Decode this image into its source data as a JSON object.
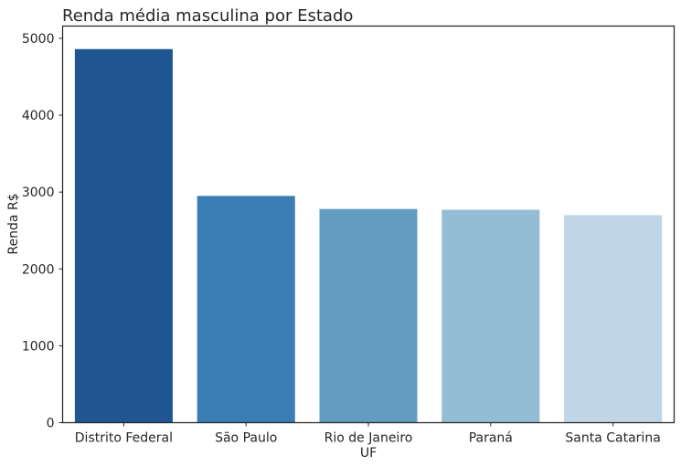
{
  "chart_data": {
    "type": "bar",
    "title": "Renda média masculina por Estado",
    "xlabel": "UF",
    "ylabel": "Renda R$",
    "categories": [
      "Distrito Federal",
      "São Paulo",
      "Rio de Janeiro",
      "Paraná",
      "Santa Catarina"
    ],
    "values": [
      4860,
      2950,
      2780,
      2770,
      2700
    ],
    "colors": [
      "#1f5591",
      "#3a7db3",
      "#629cc0",
      "#94bcd5",
      "#c0d6e7"
    ],
    "ylim": [
      0,
      5160
    ],
    "yticks": [
      0,
      1000,
      2000,
      3000,
      4000,
      5000
    ],
    "ytick_labels": [
      "0",
      "1000",
      "2000",
      "3000",
      "4000",
      "5000"
    ],
    "grid": false,
    "legend": "none"
  }
}
